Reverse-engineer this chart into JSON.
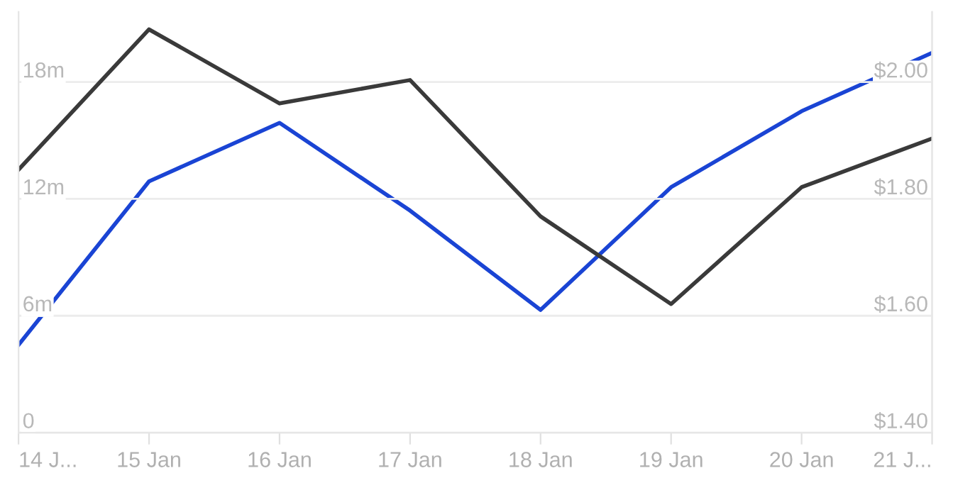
{
  "chart_data": {
    "type": "line",
    "categories": [
      "14 J...",
      "15 Jan",
      "16 Jan",
      "17 Jan",
      "18 Jan",
      "19 Jan",
      "20 Jan",
      "21 J..."
    ],
    "series": [
      {
        "color": "#3a3a3a",
        "values": [
          13.5,
          20.7,
          16.9,
          18.1,
          11.1,
          6.6,
          12.6,
          15.1
        ]
      },
      {
        "color": "#1a44d4",
        "axis": "y2",
        "values": [
          1.55,
          1.83,
          1.93,
          1.78,
          1.61,
          1.82,
          1.95,
          2.05
        ]
      }
    ],
    "ylim": [
      0,
      21.6
    ],
    "yticks": [
      {
        "value": 0,
        "label": "0"
      },
      {
        "value": 6,
        "label": "6m"
      },
      {
        "value": 12,
        "label": "12m"
      },
      {
        "value": 18,
        "label": "18m"
      }
    ],
    "y2lim": [
      1.4,
      2.12
    ],
    "y2ticks": [
      {
        "value": 1.4,
        "label": "$1.40"
      },
      {
        "value": 1.6,
        "label": "$1.60"
      },
      {
        "value": 1.8,
        "label": "$1.80"
      },
      {
        "value": 2.0,
        "label": "$2.00"
      }
    ],
    "grid": "y",
    "legend": false,
    "marker": "none",
    "line_style": "solid"
  }
}
